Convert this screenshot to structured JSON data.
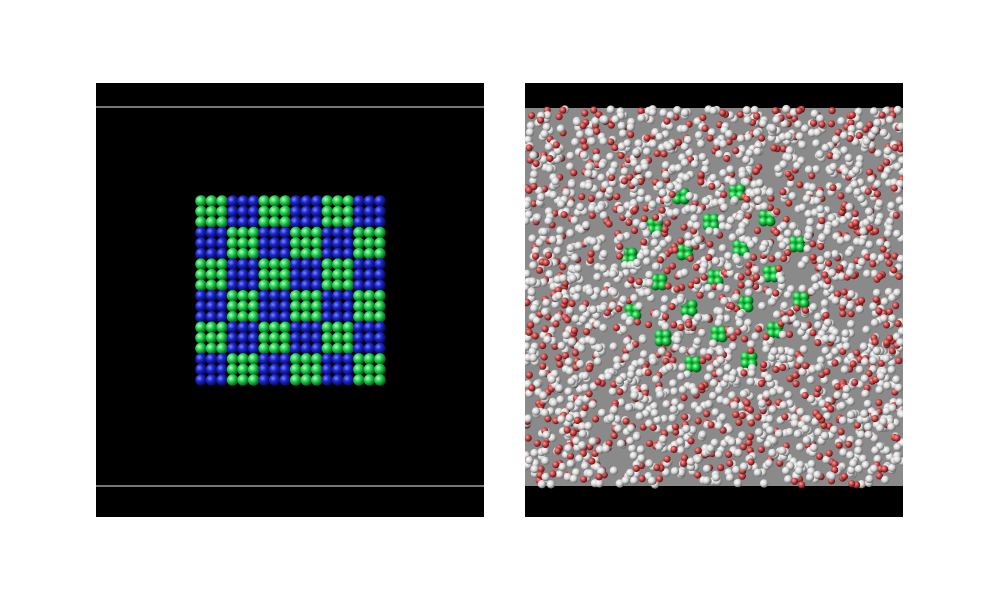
{
  "figure": {
    "panels": [
      {
        "id": "left",
        "subject": "crystal-lattice-checkerboard",
        "colors": {
          "background": "#000000",
          "atom_a": "#1fd14a",
          "atom_b": "#1a22c8",
          "boundary_line": "#bdbdbd"
        },
        "lattice": {
          "cells_per_side": 6,
          "atoms_per_cell_side": 3
        }
      },
      {
        "id": "right",
        "subject": "solvated-lattice",
        "colors": {
          "background": "#000000",
          "solvent_light": "#d8d8d8",
          "solvent_red": "#c84646",
          "exposed_atom": "#13c93e"
        }
      }
    ]
  }
}
